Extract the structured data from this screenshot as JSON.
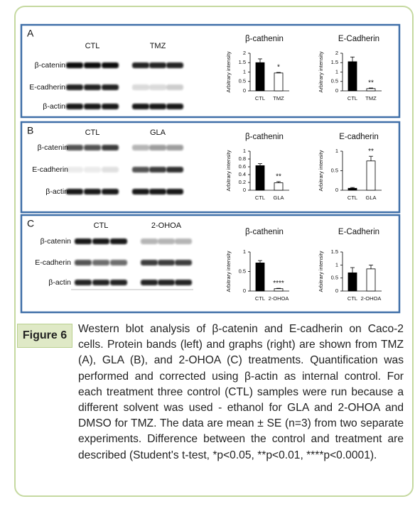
{
  "panels": [
    {
      "label": "A",
      "blot": {
        "groups": [
          "CTL",
          "TMZ"
        ],
        "proteins": [
          "β-catenin",
          "E-cadherin",
          "β-actin"
        ]
      },
      "charts": [
        {
          "type": "bar",
          "title": "β-cathenin",
          "ylabel": "Arbitrary intensity",
          "categories": [
            "CTL",
            "TMZ"
          ],
          "values": [
            1.5,
            0.95
          ],
          "errors": [
            0.2,
            0.03
          ],
          "annotations": [
            null,
            "*"
          ],
          "colors": [
            "#000000",
            "#ffffff"
          ],
          "ylim": [
            0,
            2
          ],
          "yticks": [
            0,
            0.5,
            1,
            1.5,
            2
          ]
        },
        {
          "type": "bar",
          "title": "E-Cadherin",
          "ylabel": "Arbitrary intensity",
          "categories": [
            "CTL",
            "TMZ"
          ],
          "values": [
            1.55,
            0.12
          ],
          "errors": [
            0.25,
            0.03
          ],
          "annotations": [
            null,
            "**"
          ],
          "colors": [
            "#000000",
            "#ffffff"
          ],
          "ylim": [
            0,
            2
          ],
          "yticks": [
            0,
            0.5,
            1,
            1.5,
            2
          ]
        }
      ]
    },
    {
      "label": "B",
      "blot": {
        "groups": [
          "CTL",
          "GLA"
        ],
        "proteins": [
          "β-catenin",
          "E-cadherin",
          "β-actin"
        ]
      },
      "charts": [
        {
          "type": "bar",
          "title": "β-cathenin",
          "ylabel": "Arbitrary intensity",
          "categories": [
            "CTL",
            "GLA"
          ],
          "values": [
            0.63,
            0.19
          ],
          "errors": [
            0.05,
            0.03
          ],
          "annotations": [
            null,
            "**"
          ],
          "colors": [
            "#000000",
            "#ffffff"
          ],
          "ylim": [
            0,
            1
          ],
          "yticks": [
            0,
            0.2,
            0.4,
            0.6,
            0.8,
            1
          ]
        },
        {
          "type": "bar",
          "title": "E-cadherin",
          "ylabel": "Arbitrary intensity",
          "categories": [
            "CTL",
            "GLA"
          ],
          "values": [
            0.05,
            0.75
          ],
          "errors": [
            0.02,
            0.12
          ],
          "annotations": [
            null,
            "**"
          ],
          "colors": [
            "#000000",
            "#ffffff"
          ],
          "ylim": [
            0,
            1
          ],
          "yticks": [
            0,
            0.5,
            1
          ]
        }
      ]
    },
    {
      "label": "C",
      "blot": {
        "groups": [
          "CTL",
          "2-OHOA"
        ],
        "proteins": [
          "β-catenin",
          "E-cadherin",
          "β-actin"
        ]
      },
      "charts": [
        {
          "type": "bar",
          "title": "β-cathenin",
          "ylabel": "Arbitrary intensity",
          "categories": [
            "CTL",
            "2-OHOA"
          ],
          "values": [
            0.72,
            0.06
          ],
          "errors": [
            0.06,
            0.01
          ],
          "annotations": [
            null,
            "****"
          ],
          "colors": [
            "#000000",
            "#ffffff"
          ],
          "ylim": [
            0,
            1
          ],
          "yticks": [
            0,
            0.5,
            1
          ]
        },
        {
          "type": "bar",
          "title": "E-Cadherin",
          "ylabel": "Arbitrary intensity",
          "categories": [
            "CTL",
            "2-OHOA"
          ],
          "values": [
            0.7,
            0.85
          ],
          "errors": [
            0.2,
            0.15
          ],
          "annotations": [
            null,
            null
          ],
          "colors": [
            "#000000",
            "#ffffff"
          ],
          "ylim": [
            0,
            1.5
          ],
          "yticks": [
            0,
            0.5,
            1,
            1.5
          ]
        }
      ]
    }
  ],
  "caption": {
    "label": "Figure 6",
    "text": "Western blot analysis of β-catenin and E-cadherin on Caco-2 cells. Protein bands (left) and graphs (right) are shown from TMZ (A), GLA (B), and 2-OHOA (C) treatments. Quantification was performed and corrected using β-actin as internal control. For each treatment three control (CTL) samples were run because a different solvent was used - ethanol for GLA and 2-OHOA and DMSO for TMZ. The data are mean ± SE (n=3) from two separate experiments. Difference between the control and treatment are described (Student's t-test, *p<0.05, **p<0.01, ****p<0.0001)."
  }
}
